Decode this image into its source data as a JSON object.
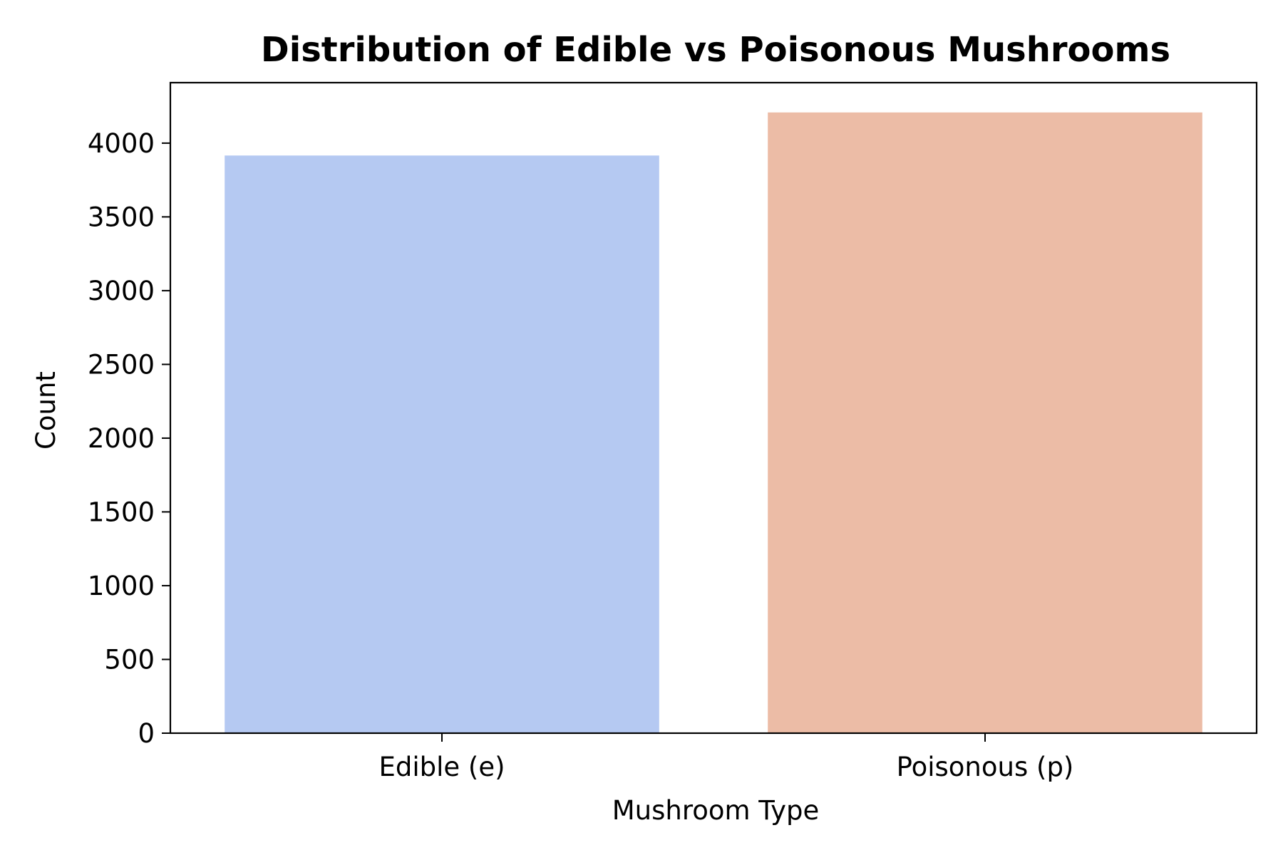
{
  "chart_data": {
    "type": "bar",
    "title": "Distribution of Edible vs Poisonous Mushrooms",
    "xlabel": "Mushroom Type",
    "ylabel": "Count",
    "categories": [
      "Edible (e)",
      "Poisonous (p)"
    ],
    "values": [
      3916,
      4208
    ],
    "colors": [
      "#b5c9f2",
      "#ecbca6"
    ],
    "ylim": [
      0,
      4410
    ],
    "yticks": [
      0,
      500,
      1000,
      1500,
      2000,
      2500,
      3000,
      3500,
      4000
    ],
    "grid": false,
    "legend": "none"
  }
}
